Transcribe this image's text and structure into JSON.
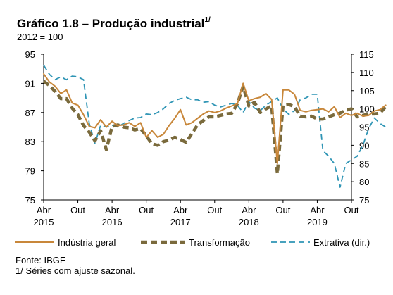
{
  "title": {
    "main": "Gráfico 1.8 – Produção industrial",
    "sup": "1/",
    "subtitle": "2012 = 100"
  },
  "chart_data": {
    "type": "line",
    "title": "Gráfico 1.8 – Produção industrial1/",
    "subtitle": "2012 = 100",
    "x_start": "2015-04",
    "x_end": "2019-10",
    "x_ticks": [
      {
        "month": "Abr",
        "year": "2015",
        "date": "2015-04"
      },
      {
        "month": "Out",
        "year": "",
        "date": "2015-10"
      },
      {
        "month": "Abr",
        "year": "2016",
        "date": "2016-04"
      },
      {
        "month": "Out",
        "year": "",
        "date": "2016-10"
      },
      {
        "month": "Abr",
        "year": "2017",
        "date": "2017-04"
      },
      {
        "month": "Out",
        "year": "",
        "date": "2017-10"
      },
      {
        "month": "Abr",
        "year": "2018",
        "date": "2018-04"
      },
      {
        "month": "Out",
        "year": "",
        "date": "2018-10"
      },
      {
        "month": "Abr",
        "year": "2019",
        "date": "2019-04"
      },
      {
        "month": "Out",
        "year": "",
        "date": "2019-10"
      }
    ],
    "y_left": {
      "min": 75,
      "max": 95,
      "ticks": [
        "75",
        "79",
        "83",
        "87",
        "91",
        "95"
      ]
    },
    "y_right": {
      "min": 75,
      "max": 115,
      "ticks": [
        "75",
        "80",
        "85",
        "90",
        "95",
        "100",
        "105",
        "110",
        "115"
      ],
      "label": "dir."
    },
    "series": [
      {
        "name": "Indústria geral",
        "axis": "left",
        "color": "#c8873a",
        "style": "solid",
        "values": [
          92.3,
          91.2,
          90.6,
          89.6,
          90.1,
          88.3,
          88.0,
          86.7,
          85.1,
          84.9,
          86.0,
          85.0,
          85.8,
          85.2,
          85.3,
          85.6,
          85.1,
          85.6,
          83.6,
          84.5,
          83.6,
          84.0,
          85.2,
          86.2,
          87.4,
          85.3,
          85.6,
          86.2,
          86.8,
          87.2,
          87.0,
          87.2,
          87.6,
          87.9,
          88.2,
          91.0,
          88.6,
          88.9,
          89.1,
          89.6,
          88.8,
          80.0,
          90.1,
          90.1,
          89.5,
          87.3,
          87.1,
          87.3,
          87.4,
          87.5,
          87.1,
          87.8,
          86.3,
          86.9,
          86.6,
          86.9,
          86.5,
          86.6,
          87.2,
          87.4,
          88.0
        ]
      },
      {
        "name": "Transformação",
        "axis": "left",
        "color": "#7a6a3c",
        "style": "dashed",
        "values": [
          91.3,
          90.7,
          89.9,
          88.9,
          88.9,
          87.6,
          86.7,
          85.2,
          84.3,
          83.1,
          84.5,
          81.9,
          85.1,
          85.3,
          85.0,
          84.9,
          84.6,
          84.8,
          83.8,
          82.7,
          82.5,
          83.0,
          83.2,
          83.6,
          83.3,
          82.9,
          84.1,
          85.3,
          85.9,
          86.4,
          86.4,
          86.6,
          86.8,
          86.9,
          88.2,
          90.6,
          87.9,
          88.4,
          87.0,
          87.5,
          87.9,
          78.6,
          88.0,
          88.1,
          87.8,
          86.5,
          86.4,
          86.5,
          86.1,
          86.1,
          86.4,
          86.7,
          86.9,
          87.3,
          87.5,
          86.4,
          86.6,
          86.8,
          86.8,
          86.9,
          87.8
        ]
      },
      {
        "name": "Extrativa (dir.)",
        "axis": "right",
        "color": "#2f95b5",
        "style": "dashed",
        "values": [
          112.0,
          109.5,
          108.0,
          108.8,
          108.0,
          109.0,
          108.8,
          108.0,
          96.0,
          90.5,
          95.5,
          95.0,
          95.5,
          95.0,
          96.0,
          96.8,
          97.5,
          97.6,
          98.6,
          98.4,
          99.0,
          100.0,
          101.5,
          102.3,
          102.8,
          103.2,
          102.5,
          102.5,
          101.8,
          102.0,
          101.0,
          100.5,
          101.0,
          101.5,
          101.0,
          99.0,
          102.0,
          100.2,
          99.5,
          101.0,
          102.0,
          103.0,
          100.0,
          98.5,
          99.5,
          102.5,
          103.0,
          104.0,
          104.0,
          88.5,
          87.0,
          85.0,
          78.5,
          85.0,
          86.0,
          87.0,
          90.0,
          94.5,
          97.5,
          96.0,
          95.0
        ]
      }
    ],
    "legend_position": "bottom",
    "grid": false
  },
  "legend": [
    {
      "label": "Indústria geral"
    },
    {
      "label": "Transformação"
    },
    {
      "label": "Extrativa (dir.)"
    }
  ],
  "footer": {
    "source": "Fonte: IBGE",
    "note": "1/ Séries com ajuste sazonal."
  }
}
